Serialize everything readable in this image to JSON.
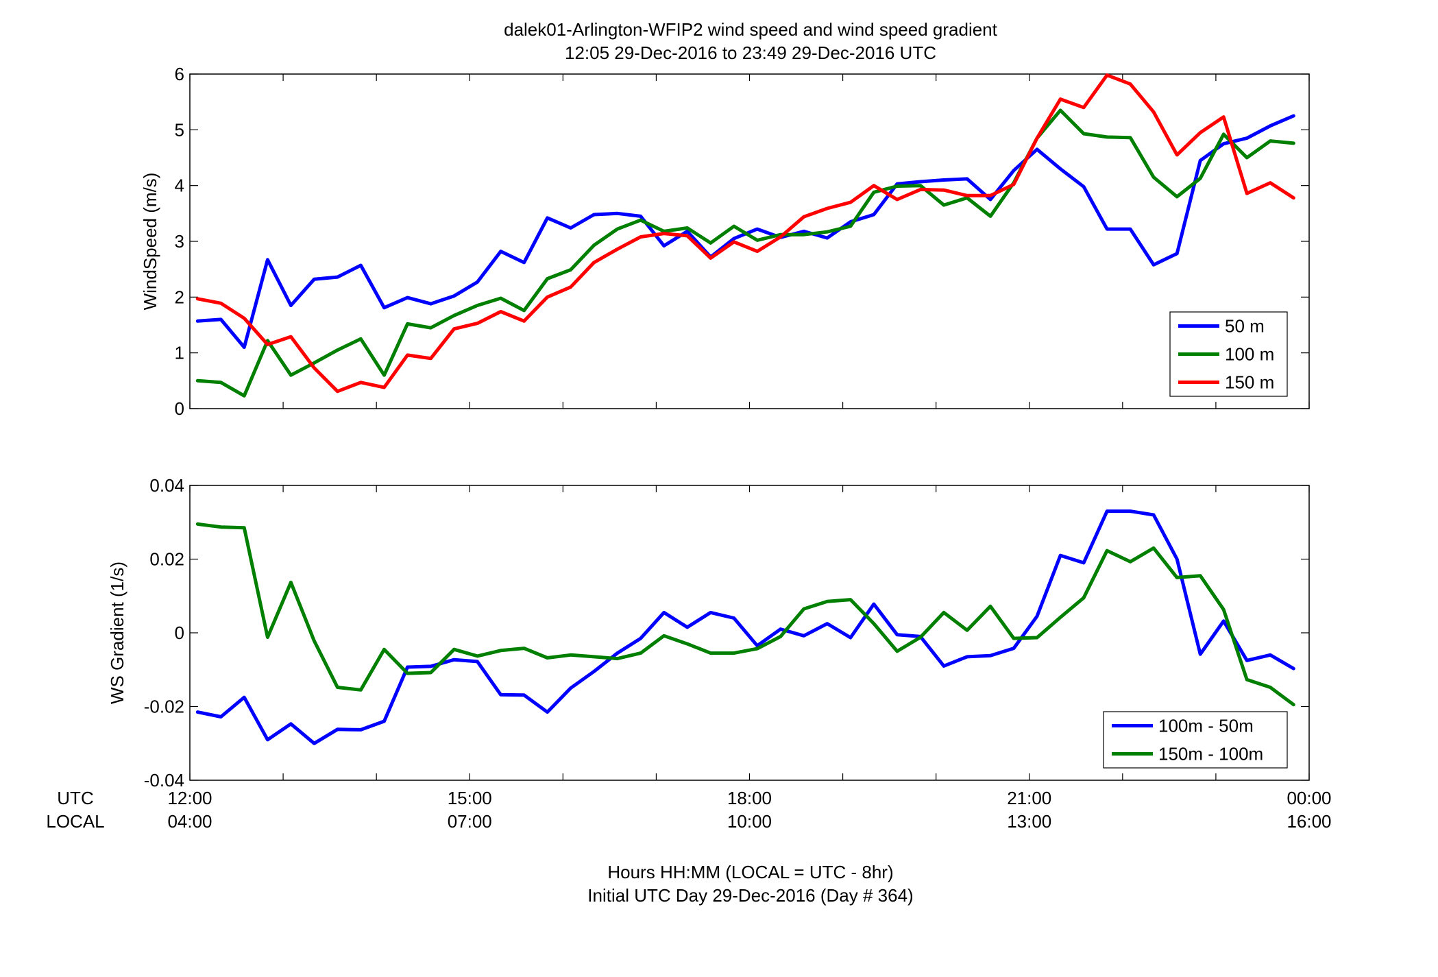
{
  "figure": {
    "title_line1": "dalek01-Arlington-WFIP2  wind speed and wind speed gradient",
    "title_line2": "12:05 29-Dec-2016 to 23:49 29-Dec-2016  UTC",
    "xlabel_line1": "Hours HH:MM  (LOCAL = UTC - 8hr)",
    "xlabel_line2": "Initial UTC Day 29-Dec-2016 (Day # 364)",
    "row_label_utc": "UTC",
    "row_label_local": "LOCAL",
    "x_ticks_utc": [
      "12:00",
      "15:00",
      "18:00",
      "21:00",
      "00:00"
    ],
    "x_ticks_local": [
      "04:00",
      "07:00",
      "10:00",
      "13:00",
      "16:00"
    ],
    "colors": {
      "blue": "#0000ff",
      "green": "#007f00",
      "red": "#ff0000"
    }
  },
  "chart_data": [
    {
      "type": "line",
      "ylabel": "WindSpeed (m/s)",
      "xlim": [
        12,
        24
      ],
      "ylim": [
        0,
        6
      ],
      "yticks": [
        "0",
        "1",
        "2",
        "3",
        "4",
        "5",
        "6"
      ],
      "grid": false,
      "legend": "bottom-right",
      "x": [
        12.083,
        12.333,
        12.583,
        12.833,
        13.083,
        13.333,
        13.583,
        13.833,
        14.083,
        14.333,
        14.583,
        14.833,
        15.083,
        15.333,
        15.583,
        15.833,
        16.083,
        16.333,
        16.583,
        16.833,
        17.083,
        17.333,
        17.583,
        17.833,
        18.083,
        18.333,
        18.583,
        18.833,
        19.083,
        19.333,
        19.583,
        19.833,
        20.083,
        20.333,
        20.583,
        20.833,
        21.083,
        21.333,
        21.583,
        21.833,
        22.083,
        22.333,
        22.583,
        22.833,
        23.083,
        23.333,
        23.583,
        23.833
      ],
      "series": [
        {
          "name": "50 m",
          "color": "#0000ff",
          "values": [
            1.57,
            1.6,
            1.1,
            2.67,
            1.85,
            2.32,
            2.36,
            2.57,
            1.81,
            1.99,
            1.88,
            2.02,
            2.27,
            2.82,
            2.62,
            3.42,
            3.24,
            3.48,
            3.5,
            3.45,
            2.92,
            3.18,
            2.72,
            3.05,
            3.22,
            3.07,
            3.18,
            3.06,
            3.35,
            3.48,
            4.03,
            4.07,
            4.1,
            4.12,
            3.75,
            4.27,
            4.65,
            4.3,
            3.98,
            3.22,
            3.22,
            2.58,
            2.78,
            4.45,
            4.75,
            4.85,
            5.07,
            5.25
          ]
        },
        {
          "name": "100 m",
          "color": "#007f00",
          "values": [
            0.5,
            0.47,
            0.23,
            1.22,
            0.6,
            0.82,
            1.05,
            1.25,
            0.6,
            1.52,
            1.45,
            1.67,
            1.85,
            1.98,
            1.76,
            2.33,
            2.49,
            2.93,
            3.22,
            3.38,
            3.18,
            3.24,
            2.97,
            3.27,
            3.02,
            3.12,
            3.12,
            3.17,
            3.27,
            3.88,
            3.99,
            4.0,
            3.65,
            3.78,
            3.45,
            4.05,
            4.85,
            5.35,
            4.93,
            4.87,
            4.86,
            4.15,
            3.8,
            4.13,
            4.92,
            4.5,
            4.8,
            4.76
          ]
        },
        {
          "name": "150 m",
          "color": "#ff0000",
          "values": [
            1.97,
            1.89,
            1.62,
            1.15,
            1.29,
            0.73,
            0.31,
            0.47,
            0.38,
            0.96,
            0.9,
            1.43,
            1.53,
            1.74,
            1.57,
            2.0,
            2.18,
            2.62,
            2.86,
            3.08,
            3.14,
            3.1,
            2.7,
            2.99,
            2.82,
            3.08,
            3.44,
            3.59,
            3.7,
            4.0,
            3.75,
            3.93,
            3.92,
            3.82,
            3.82,
            4.02,
            4.85,
            5.55,
            5.4,
            5.98,
            5.82,
            5.32,
            4.55,
            4.95,
            5.23,
            3.86,
            4.05,
            3.78
          ]
        }
      ]
    },
    {
      "type": "line",
      "ylabel": "WS Gradient (1/s)",
      "xlim": [
        12,
        24
      ],
      "ylim": [
        -0.04,
        0.04
      ],
      "yticks": [
        "-0.04",
        "-0.02",
        "0",
        "0.02",
        "0.04"
      ],
      "grid": false,
      "legend": "bottom-right",
      "x": [
        12.083,
        12.333,
        12.583,
        12.833,
        13.083,
        13.333,
        13.583,
        13.833,
        14.083,
        14.333,
        14.583,
        14.833,
        15.083,
        15.333,
        15.583,
        15.833,
        16.083,
        16.333,
        16.583,
        16.833,
        17.083,
        17.333,
        17.583,
        17.833,
        18.083,
        18.333,
        18.583,
        18.833,
        19.083,
        19.333,
        19.583,
        19.833,
        20.083,
        20.333,
        20.583,
        20.833,
        21.083,
        21.333,
        21.583,
        21.833,
        22.083,
        22.333,
        22.583,
        22.833,
        23.083,
        23.333,
        23.583,
        23.833
      ],
      "series": [
        {
          "name": "100m - 50m",
          "color": "#0000ff",
          "values": [
            -0.0215,
            -0.0228,
            -0.0175,
            -0.029,
            -0.0247,
            -0.03,
            -0.0262,
            -0.0263,
            -0.024,
            -0.0093,
            -0.0091,
            -0.0073,
            -0.0078,
            -0.0168,
            -0.0169,
            -0.0215,
            -0.015,
            -0.0105,
            -0.0055,
            -0.0015,
            0.0055,
            0.0015,
            0.0055,
            0.004,
            -0.0035,
            0.001,
            -0.0008,
            0.0025,
            -0.0013,
            0.0078,
            -0.0005,
            -0.001,
            -0.009,
            -0.0065,
            -0.0062,
            -0.0042,
            0.0045,
            0.021,
            0.019,
            0.033,
            0.033,
            0.032,
            0.02,
            -0.0058,
            0.0032,
            -0.0075,
            -0.006,
            -0.0097
          ]
        },
        {
          "name": "150m - 100m",
          "color": "#007f00",
          "values": [
            0.0295,
            0.0287,
            0.0285,
            -0.0012,
            0.0137,
            -0.0022,
            -0.0148,
            -0.0155,
            -0.0045,
            -0.011,
            -0.0108,
            -0.0045,
            -0.0063,
            -0.0048,
            -0.0042,
            -0.0068,
            -0.006,
            -0.0065,
            -0.007,
            -0.0055,
            -0.0008,
            -0.003,
            -0.0055,
            -0.0055,
            -0.0043,
            -0.001,
            0.0065,
            0.0085,
            0.009,
            0.0025,
            -0.005,
            -0.0012,
            0.0055,
            0.0007,
            0.0072,
            -0.0015,
            -0.0013,
            0.0042,
            0.0095,
            0.0223,
            0.0193,
            0.023,
            0.015,
            0.0155,
            0.0063,
            -0.0127,
            -0.0148,
            -0.0195
          ]
        }
      ]
    }
  ]
}
